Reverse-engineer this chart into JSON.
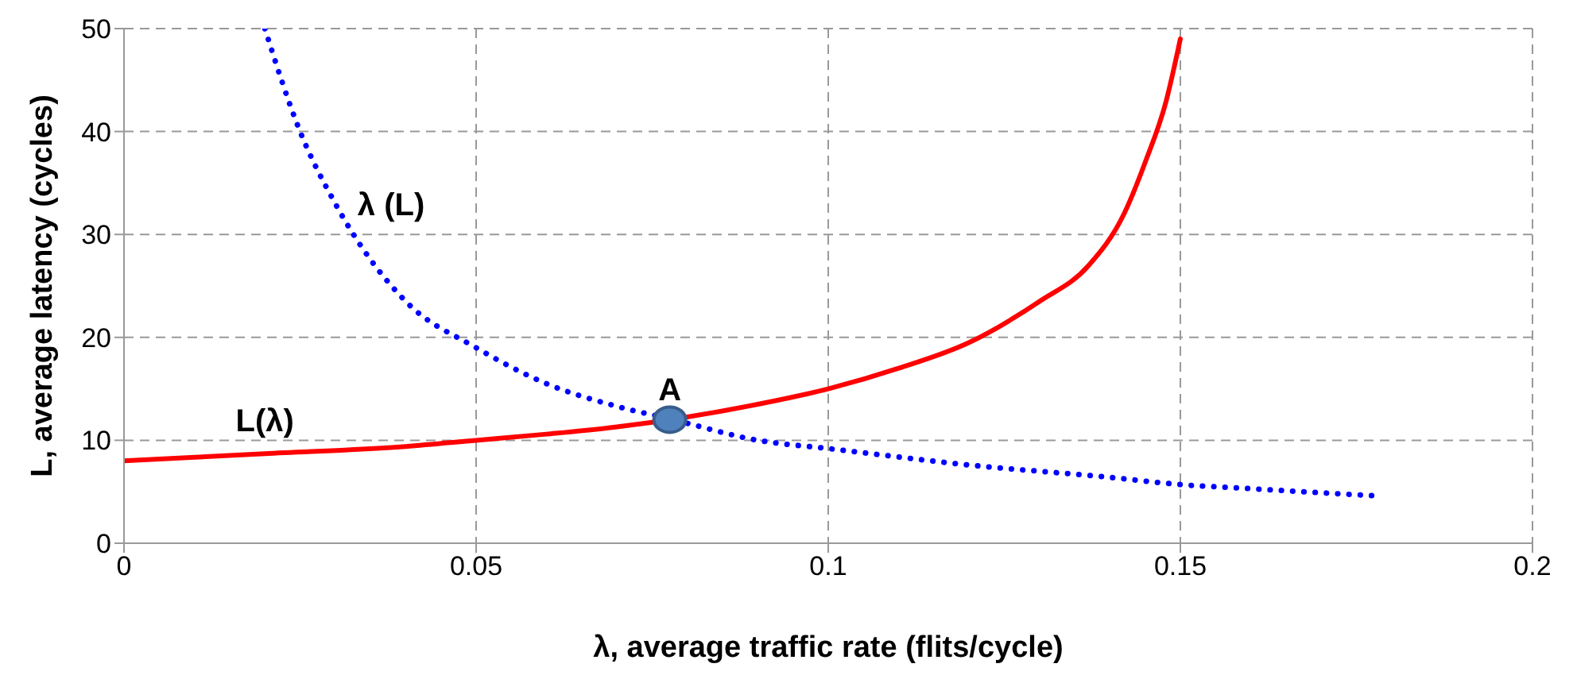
{
  "chart_data": {
    "type": "line",
    "xlabel": "λ, average traffic rate (flits/cycle)",
    "ylabel": "L, average latency (cycles)",
    "xlim": [
      0,
      0.2
    ],
    "xticks": [
      0,
      0.05,
      0.1,
      0.15,
      0.2
    ],
    "ylim": [
      0,
      50
    ],
    "yticks": [
      0,
      10,
      20,
      30,
      40,
      50
    ],
    "grid": true,
    "marker": "none",
    "series": [
      {
        "name": "L(λ)",
        "color": "#ff0000",
        "line_style": "solid",
        "x": [
          0,
          0.02,
          0.04,
          0.05,
          0.06,
          0.07,
          0.09,
          0.1,
          0.11,
          0.12,
          0.13,
          0.137,
          0.142,
          0.145,
          0.148,
          0.15
        ],
        "values": [
          8,
          8.7,
          9.4,
          10,
          10.6,
          11.3,
          13.5,
          15,
          17,
          19.5,
          23.5,
          27,
          32,
          37,
          43,
          49
        ]
      },
      {
        "name": "λ (L)",
        "color": "#0000ff",
        "line_style": "dotted",
        "x": [
          0.02,
          0.025,
          0.03,
          0.04,
          0.05,
          0.06,
          0.07,
          0.078,
          0.09,
          0.1,
          0.12,
          0.14,
          0.15,
          0.16,
          0.17,
          0.178
        ],
        "values": [
          50,
          40,
          33,
          23.5,
          19,
          15.5,
          13.3,
          12,
          10,
          9.2,
          7.6,
          6.4,
          5.7,
          5.3,
          4.9,
          4.6
        ]
      },
      {
        "type": "scatter",
        "color": "#4f81bd",
        "marker": "circle",
        "x": [
          0.0775
        ],
        "values": [
          12
        ]
      }
    ],
    "annotations": [
      {
        "text": "A",
        "x": 0.0775,
        "y": 12
      }
    ]
  }
}
